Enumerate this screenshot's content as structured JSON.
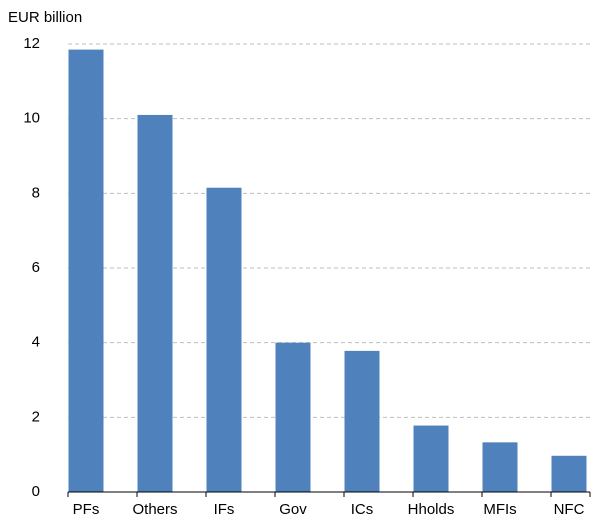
{
  "chart_data": {
    "type": "bar",
    "y_axis_label": "EUR billion",
    "categories": [
      "PFs",
      "Others",
      "IFs",
      "Gov",
      "ICs",
      "Hholds",
      "MFIs",
      "NFC"
    ],
    "values": [
      11.85,
      10.1,
      8.15,
      4.0,
      3.78,
      1.78,
      1.33,
      0.97
    ],
    "color": "#4f81bd",
    "ylim": [
      0,
      12
    ],
    "yticks": [
      0,
      2,
      4,
      6,
      8,
      10,
      12
    ],
    "grid": true
  }
}
